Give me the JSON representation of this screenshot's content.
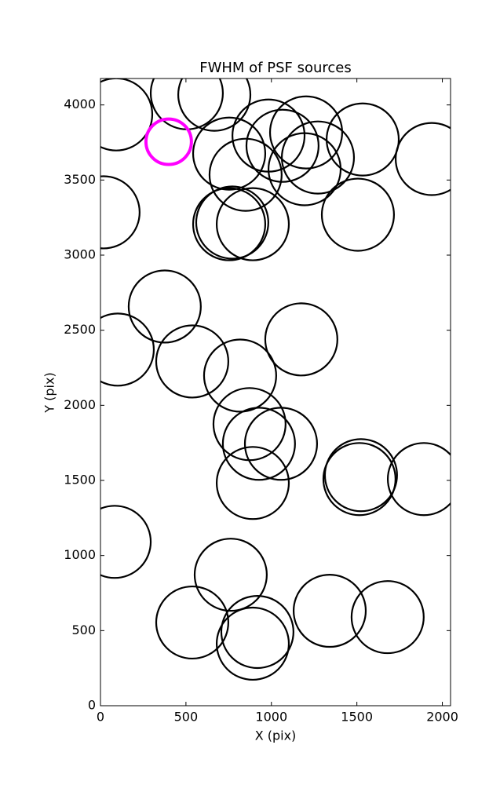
{
  "chart_data": {
    "type": "scatter",
    "title": "FWHM of PSF sources",
    "x_label": "X (pix)",
    "y_label": "Y (pix)",
    "xlim": [
      0,
      2048
    ],
    "ylim": [
      0,
      4176
    ],
    "xticks": [
      0,
      500,
      1000,
      1500,
      2000
    ],
    "yticks": [
      0,
      500,
      1000,
      1500,
      2000,
      2500,
      3000,
      3500,
      4000
    ],
    "series": [
      {
        "color": "#000000",
        "x": [
          92,
          505,
          666,
          753,
          983,
          1065,
          1203,
          1272,
          1194,
          1534,
          1938,
          849,
          18,
          753,
          771,
          891,
          1506,
          376,
          101,
          537,
          1175,
          817,
          872,
          927,
          1056,
          891,
          1515,
          1524,
          1892,
          83,
          762,
          537,
          918,
          891,
          1341,
          1680
        ],
        "values": [
          3937,
          4078,
          4068,
          3676,
          3796,
          3728,
          3817,
          3650,
          3572,
          3770,
          3640,
          3535,
          3285,
          3206,
          3217,
          3206,
          3269,
          2658,
          2371,
          2292,
          2439,
          2198,
          1875,
          1744,
          1744,
          1483,
          1509,
          1535,
          1509,
          1091,
          872,
          554,
          491,
          413,
          632,
          590
        ],
        "sizes": [
          211,
          211,
          211,
          211,
          211,
          211,
          211,
          211,
          211,
          211,
          211,
          211,
          211,
          211,
          211,
          211,
          211,
          211,
          211,
          211,
          211,
          211,
          211,
          211,
          211,
          211,
          211,
          211,
          211,
          211,
          211,
          211,
          211,
          211,
          211,
          211
        ]
      },
      {
        "color": "#ff00ff",
        "x": [
          399
        ],
        "values": [
          3755
        ],
        "sizes": [
          133
        ]
      }
    ]
  }
}
